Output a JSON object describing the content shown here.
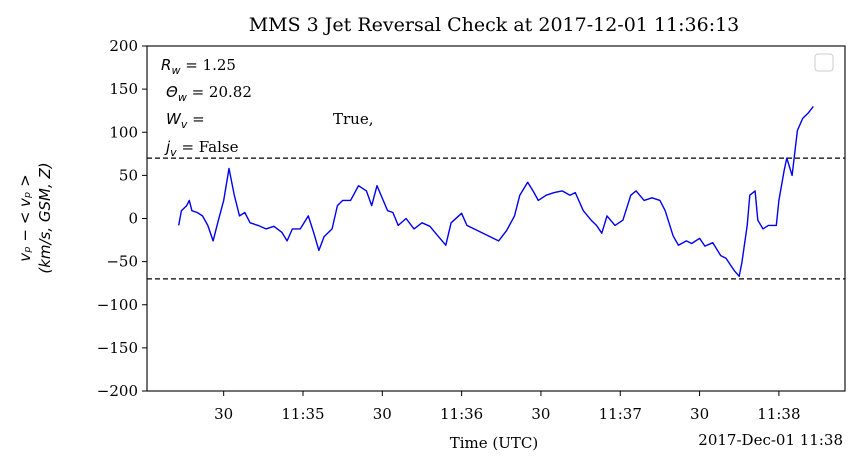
{
  "chart_data": {
    "type": "line",
    "title": "MMS 3 Jet Reversal Check at 2017-12-01 11:36:13",
    "x_label": "Time (UTC)",
    "x_offset_label": "2017-Dec-01 11:38",
    "y_label": [
      "vₚ − < vₚ >",
      "(km/s, GSM, Z)"
    ],
    "annotation": [
      {
        "var": "R",
        "sub": "w",
        "rest": " = 1.25"
      },
      {
        "var": "Θ",
        "sub": "w",
        "rest": " = 20.82"
      },
      {
        "var": "W",
        "sub": "v",
        "rest": " =",
        "value": "True,"
      },
      {
        "var": "j",
        "sub": "v",
        "rest": " = False"
      }
    ],
    "hlines": [
      70,
      -70
    ],
    "xlim": [
      "11:34:01",
      "11:38:25"
    ],
    "xticks": [
      {
        "value": "11:34:30",
        "label": "30"
      },
      {
        "value": "11:35:00",
        "label": "11:35"
      },
      {
        "value": "11:35:30",
        "label": "30"
      },
      {
        "value": "11:36:00",
        "label": "11:36"
      },
      {
        "value": "11:36:30",
        "label": "30"
      },
      {
        "value": "11:37:00",
        "label": "11:37"
      },
      {
        "value": "11:37:30",
        "label": "30"
      },
      {
        "value": "11:38:00",
        "label": "11:38"
      }
    ],
    "ylim": [
      -200,
      200
    ],
    "yticks": [
      {
        "value": -200,
        "label": "−200"
      },
      {
        "value": -150,
        "label": "−150"
      },
      {
        "value": -100,
        "label": "−100"
      },
      {
        "value": -50,
        "label": "−50"
      },
      0,
      50,
      100,
      150,
      200
    ],
    "legend": "upper right",
    "series": [
      {
        "color": "#0000ee",
        "x": [
          "11:34:13",
          "11:34:14",
          "11:34:16",
          "11:34:17",
          "11:34:18",
          "11:34:20",
          "11:34:22",
          "11:34:24",
          "11:34:26",
          "11:34:28",
          "11:34:30",
          "11:34:32",
          "11:34:34",
          "11:34:36",
          "11:34:38",
          "11:34:40",
          "11:34:43",
          "11:34:46",
          "11:34:49",
          "11:34:52",
          "11:34:54",
          "11:34:56",
          "11:34:59",
          "11:35:02",
          "11:35:04",
          "11:35:06",
          "11:35:08",
          "11:35:11",
          "11:35:13",
          "11:35:15",
          "11:35:18",
          "11:35:21",
          "11:35:24",
          "11:35:26",
          "11:35:28",
          "11:35:32",
          "11:35:34",
          "11:35:36",
          "11:35:39",
          "11:35:42",
          "11:35:45",
          "11:35:48",
          "11:35:51",
          "11:35:54",
          "11:35:56",
          "11:36:00",
          "11:36:02",
          "11:36:14",
          "11:36:17",
          "11:36:20",
          "11:36:22",
          "11:36:25",
          "11:36:27",
          "11:36:29",
          "11:36:32",
          "11:36:35",
          "11:36:38",
          "11:36:41",
          "11:36:43",
          "11:36:46",
          "11:36:49",
          "11:36:51",
          "11:36:53",
          "11:36:55",
          "11:36:58",
          "11:37:01",
          "11:37:04",
          "11:37:06",
          "11:37:09",
          "11:37:12",
          "11:37:15",
          "11:37:17",
          "11:37:20",
          "11:37:22",
          "11:37:25",
          "11:37:27",
          "11:37:30",
          "11:37:32",
          "11:37:35",
          "11:37:38",
          "11:37:40",
          "11:37:43",
          "11:37:45",
          "11:37:46",
          "11:37:48",
          "11:37:49",
          "11:37:51",
          "11:37:52",
          "11:37:54",
          "11:37:56",
          "11:37:59",
          "11:38:00",
          "11:38:02",
          "11:38:03",
          "11:38:05",
          "11:38:07",
          "11:38:09",
          "11:38:11",
          "11:38:13"
        ],
        "values": [
          -8,
          9,
          15,
          21,
          9,
          7,
          3,
          -8,
          -26,
          -2,
          21,
          58,
          27,
          3,
          7,
          -5,
          -8,
          -12,
          -9,
          -16,
          -26,
          -12,
          -12,
          3,
          -16,
          -37,
          -21,
          -12,
          15,
          21,
          21,
          38,
          32,
          15,
          38,
          9,
          7,
          -8,
          0,
          -12,
          -5,
          -9,
          -20,
          -31,
          -5,
          6,
          -8,
          -26,
          -14,
          3,
          27,
          42,
          32,
          21,
          27,
          30,
          32,
          27,
          30,
          9,
          -2,
          -8,
          -17,
          3,
          -8,
          -2,
          27,
          32,
          21,
          24,
          21,
          9,
          -20,
          -31,
          -26,
          -29,
          -23,
          -32,
          -28,
          -43,
          -46,
          -60,
          -67,
          -51,
          -8,
          27,
          32,
          -2,
          -12,
          -8,
          -8,
          21,
          56,
          70,
          50,
          102,
          116,
          122,
          130
        ]
      }
    ]
  }
}
